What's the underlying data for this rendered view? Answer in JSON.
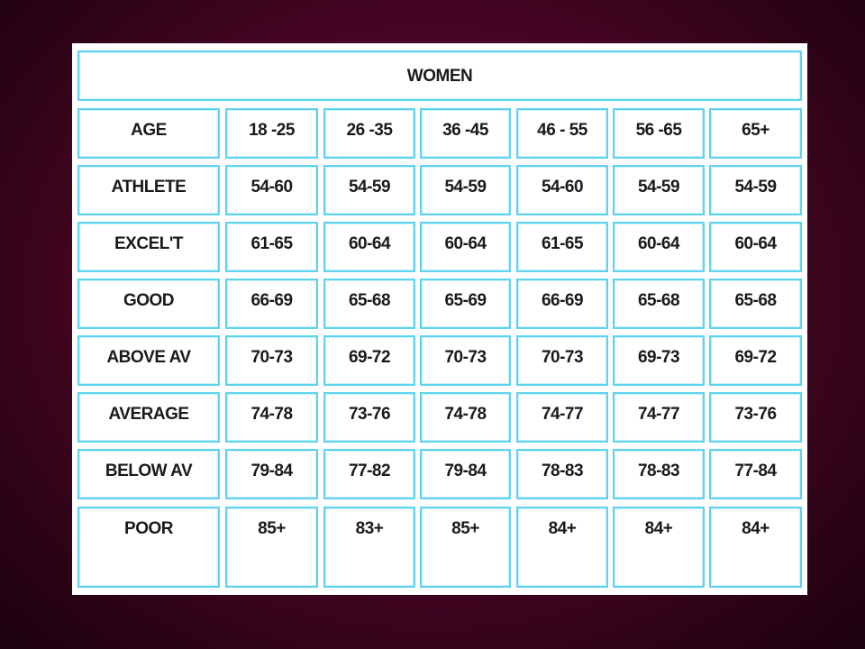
{
  "table": {
    "title": "WOMEN",
    "header": {
      "label": "AGE",
      "columns": [
        "18 -25",
        "26 -35",
        "36 -45",
        "46 - 55",
        "56 -65",
        "65+"
      ]
    },
    "rows": [
      {
        "label": "ATHLETE",
        "values": [
          "54-60",
          "54-59",
          "54-59",
          "54-60",
          "54-59",
          "54-59"
        ]
      },
      {
        "label": "EXCEL'T",
        "values": [
          "61-65",
          "60-64",
          "60-64",
          "61-65",
          "60-64",
          "60-64"
        ]
      },
      {
        "label": "GOOD",
        "values": [
          "66-69",
          "65-68",
          "65-69",
          "66-69",
          "65-68",
          "65-68"
        ]
      },
      {
        "label": "ABOVE AV",
        "values": [
          "70-73",
          "69-72",
          "70-73",
          "70-73",
          "69-73",
          "69-72"
        ]
      },
      {
        "label": "AVERAGE",
        "values": [
          "74-78",
          "73-76",
          "74-78",
          "74-77",
          "74-77",
          "73-76"
        ]
      },
      {
        "label": "BELOW AV",
        "values": [
          "79-84",
          "77-82",
          "79-84",
          "78-83",
          "78-83",
          "77-84"
        ]
      },
      {
        "label": "POOR",
        "values": [
          "85+",
          "83+",
          "85+",
          "84+",
          "84+",
          "84+"
        ]
      }
    ]
  }
}
